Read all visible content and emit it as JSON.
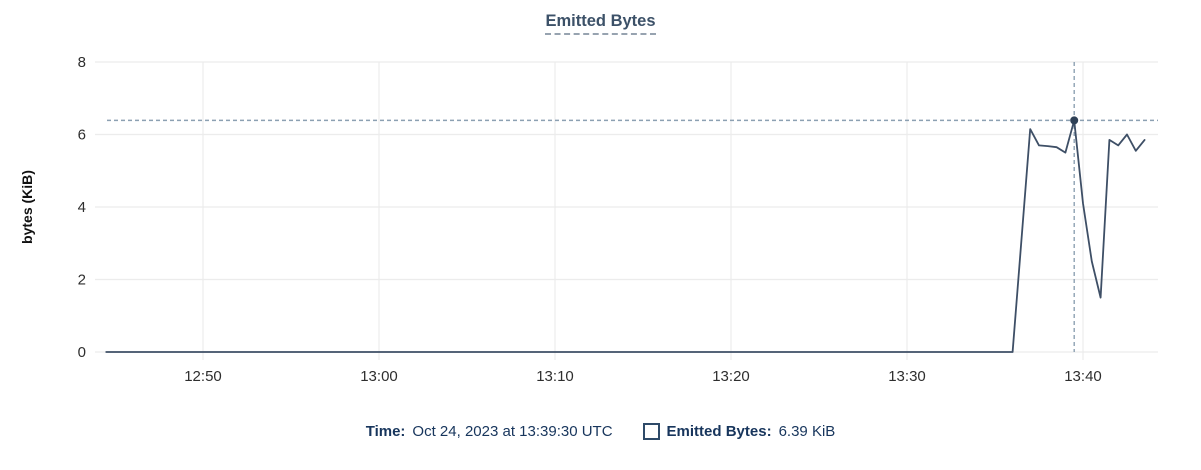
{
  "title": "Emitted Bytes",
  "footer": {
    "time_label": "Time:",
    "time_value": "Oct 24, 2023 at 13:39:30 UTC",
    "series_label": "Emitted Bytes:",
    "series_value": "6.39 KiB"
  },
  "colors": {
    "line": "#3e4f66",
    "dot": "#2f4157",
    "crosshair": "#8ca0b2",
    "grid": "#ececec",
    "tick_text": "#2e2e2e",
    "navy_text": "#17355c",
    "title_text": "#3c5168"
  },
  "chart_data": {
    "type": "line",
    "title": "Emitted Bytes",
    "ylabel": "bytes (KiB)",
    "ylim": [
      0,
      8
    ],
    "y_ticks": [
      0,
      2,
      4,
      6,
      8
    ],
    "x_ticks": [
      "12:50",
      "13:00",
      "13:10",
      "13:20",
      "13:30",
      "13:40"
    ],
    "grid": true,
    "legend_position": "bottom",
    "series_name": "Emitted Bytes",
    "x": [
      "12:44:30",
      "13:36:00",
      "13:37:00",
      "13:37:30",
      "13:38:00",
      "13:38:30",
      "13:39:00",
      "13:39:30",
      "13:40:00",
      "13:40:30",
      "13:41:00",
      "13:41:30",
      "13:42:00",
      "13:42:30",
      "13:43:00",
      "13:43:30"
    ],
    "values": [
      0,
      0,
      6.15,
      5.7,
      5.68,
      5.65,
      5.5,
      6.39,
      4.1,
      2.5,
      1.5,
      5.85,
      5.7,
      6.0,
      5.55,
      5.85
    ],
    "crosshair": {
      "time": "13:39:30",
      "value": 6.39
    }
  }
}
